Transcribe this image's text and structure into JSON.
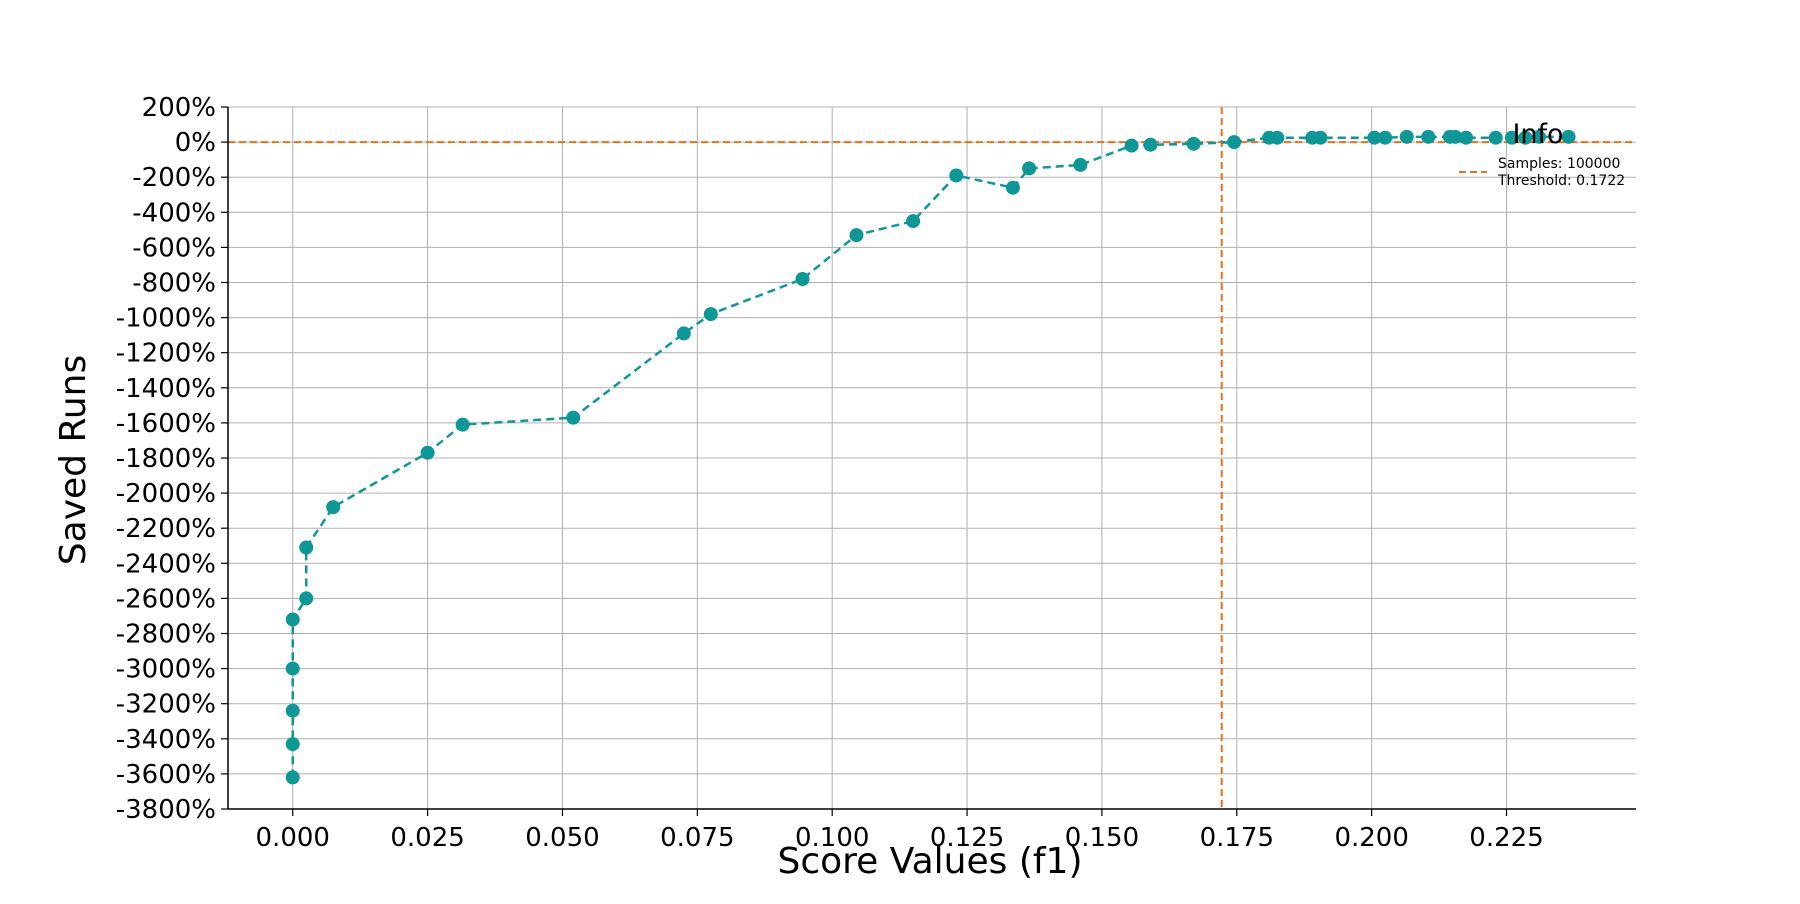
{
  "chart_data": {
    "type": "line",
    "xlabel": "Score Values (f1)",
    "ylabel": "Saved Runs",
    "xlim": [
      -0.012,
      0.249
    ],
    "ylim": [
      -3800,
      200
    ],
    "x_ticks": [
      0.0,
      0.025,
      0.05,
      0.075,
      0.1,
      0.125,
      0.15,
      0.175,
      0.2,
      0.225
    ],
    "x_tick_labels": [
      "0.000",
      "0.025",
      "0.050",
      "0.075",
      "0.100",
      "0.125",
      "0.150",
      "0.175",
      "0.200",
      "0.225"
    ],
    "y_ticks": [
      200,
      0,
      -200,
      -400,
      -600,
      -800,
      -1000,
      -1200,
      -1400,
      -1600,
      -1800,
      -2000,
      -2200,
      -2400,
      -2600,
      -2800,
      -3000,
      -3200,
      -3400,
      -3600,
      -3800
    ],
    "y_tick_labels": [
      "200%",
      "0%",
      "-200%",
      "-400%",
      "-600%",
      "-800%",
      "-1000%",
      "-1200%",
      "-1400%",
      "-1600%",
      "-1800%",
      "-2000%",
      "-2200%",
      "-2400%",
      "-2600%",
      "-2800%",
      "-3000%",
      "-3200%",
      "-3400%",
      "-3600%",
      "-3800%"
    ],
    "grid": true,
    "series": [
      {
        "color": "#0f9696",
        "line_style": "dashed",
        "marker": "circle",
        "points": [
          [
            0.0,
            -3620
          ],
          [
            0.0,
            -3430
          ],
          [
            0.0,
            -3240
          ],
          [
            0.0,
            -3000
          ],
          [
            0.0,
            -2720
          ],
          [
            0.0025,
            -2600
          ],
          [
            0.0025,
            -2310
          ],
          [
            0.0075,
            -2080
          ],
          [
            0.025,
            -1770
          ],
          [
            0.0315,
            -1610
          ],
          [
            0.052,
            -1570
          ],
          [
            0.0725,
            -1090
          ],
          [
            0.0775,
            -980
          ],
          [
            0.0945,
            -780
          ],
          [
            0.1045,
            -530
          ],
          [
            0.115,
            -450
          ],
          [
            0.123,
            -190
          ],
          [
            0.1335,
            -260
          ],
          [
            0.1365,
            -150
          ],
          [
            0.146,
            -130
          ],
          [
            0.1555,
            -20
          ],
          [
            0.159,
            -15
          ],
          [
            0.167,
            -10
          ],
          [
            0.1745,
            0
          ],
          [
            0.181,
            25
          ],
          [
            0.1825,
            25
          ],
          [
            0.189,
            25
          ],
          [
            0.1905,
            25
          ],
          [
            0.2005,
            25
          ],
          [
            0.2025,
            25
          ],
          [
            0.2065,
            30
          ],
          [
            0.2105,
            30
          ],
          [
            0.2145,
            30
          ],
          [
            0.2155,
            30
          ],
          [
            0.2175,
            25
          ],
          [
            0.223,
            25
          ],
          [
            0.226,
            25
          ],
          [
            0.2285,
            25
          ],
          [
            0.231,
            30
          ],
          [
            0.2365,
            30
          ]
        ]
      }
    ],
    "threshold": {
      "color": "#e8711c",
      "x": 0.1722,
      "y": 0,
      "line_style": "dashed"
    },
    "legend": {
      "title": "Info",
      "placement": "top-right",
      "entries": [
        "Samples: 100000",
        "Threshold: 0.1722"
      ]
    }
  }
}
